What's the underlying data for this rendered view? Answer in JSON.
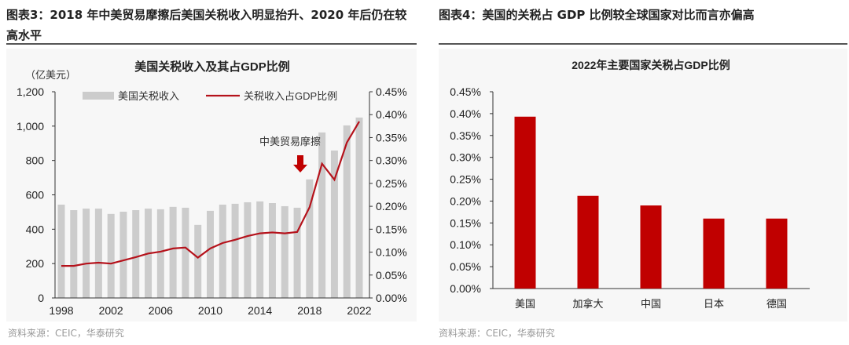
{
  "left": {
    "heading": "图表3：2018 年中美贸易摩擦后美国关税收入明显抬升、2020 年后仍在较高水平",
    "source": "资料来源：CEIC，华泰研究"
  },
  "right": {
    "heading": "图表4：美国的关税占 GDP 比例较全球国家对比而言亦偏高",
    "source": "资料来源：CEIC，华泰研究"
  },
  "chart_data": [
    {
      "type": "bar+line",
      "title": "美国关税收入及其占GDP比例",
      "ylabel": "（亿美元）",
      "annotation": "中美贸易摩擦",
      "x": [
        1998,
        1999,
        2000,
        2001,
        2002,
        2003,
        2004,
        2005,
        2006,
        2007,
        2008,
        2009,
        2010,
        2011,
        2012,
        2013,
        2014,
        2015,
        2016,
        2017,
        2018,
        2019,
        2020,
        2021,
        2022
      ],
      "xticks": [
        "1998",
        "2002",
        "2006",
        "2010",
        "2014",
        "2018",
        "2022"
      ],
      "yticks_left": [
        "0",
        "200",
        "400",
        "600",
        "800",
        "1,000",
        "1,200"
      ],
      "ylim_left": [
        0,
        1200
      ],
      "yticks_right": [
        "0.00%",
        "0.05%",
        "0.10%",
        "0.15%",
        "0.20%",
        "0.25%",
        "0.30%",
        "0.35%",
        "0.40%",
        "0.45%"
      ],
      "ylim_right": [
        0,
        0.45
      ],
      "legend": "top",
      "series": [
        {
          "name": "美国关税收入",
          "type": "bar",
          "axis": "left",
          "color": "#cccccc",
          "values": [
            543,
            511,
            520,
            520,
            489,
            502,
            511,
            520,
            516,
            530,
            525,
            425,
            507,
            543,
            548,
            557,
            562,
            552,
            534,
            525,
            690,
            963,
            858,
            1004,
            1050
          ]
        },
        {
          "name": "关税收入占GDP比例",
          "type": "line",
          "axis": "right",
          "unit": "%",
          "color": "#b5121b",
          "values": [
            0.07,
            0.07,
            0.075,
            0.077,
            0.075,
            0.082,
            0.089,
            0.097,
            0.101,
            0.108,
            0.11,
            0.088,
            0.108,
            0.12,
            0.127,
            0.135,
            0.141,
            0.143,
            0.141,
            0.144,
            0.198,
            0.293,
            0.258,
            0.339,
            0.385
          ]
        }
      ]
    },
    {
      "type": "bar",
      "title": "2022年主要国家关税占GDP比例",
      "categories": [
        "美国",
        "加拿大",
        "中国",
        "日本",
        "德国"
      ],
      "values": [
        0.393,
        0.212,
        0.19,
        0.16,
        0.16
      ],
      "unit": "%",
      "color": "#c00000",
      "yticks": [
        "0.00%",
        "0.05%",
        "0.10%",
        "0.15%",
        "0.20%",
        "0.25%",
        "0.30%",
        "0.35%",
        "0.40%",
        "0.45%"
      ],
      "ylim": [
        0,
        0.45
      ]
    }
  ]
}
